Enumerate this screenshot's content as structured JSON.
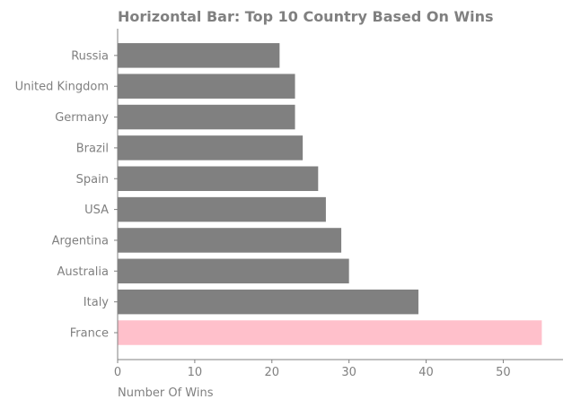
{
  "chart_data": {
    "type": "bar",
    "orientation": "horizontal",
    "title": "Horizontal Bar: Top 10 Country Based On Wins",
    "xlabel": "Number Of Wins",
    "ylabel": "",
    "categories": [
      "Russia",
      "United Kingdom",
      "Germany",
      "Brazil",
      "Spain",
      "USA",
      "Argentina",
      "Australia",
      "Italy",
      "France"
    ],
    "values": [
      21,
      23,
      23,
      24,
      26,
      27,
      29,
      30,
      39,
      55
    ],
    "highlight_category": "France",
    "xlim": [
      0,
      57.75
    ],
    "xticks": [
      0,
      10,
      20,
      30,
      40,
      50
    ],
    "grid": false,
    "colors": {
      "bar": "#808080",
      "highlight": "#ffc0cb",
      "text": "#808080",
      "axis": "#808080"
    }
  }
}
